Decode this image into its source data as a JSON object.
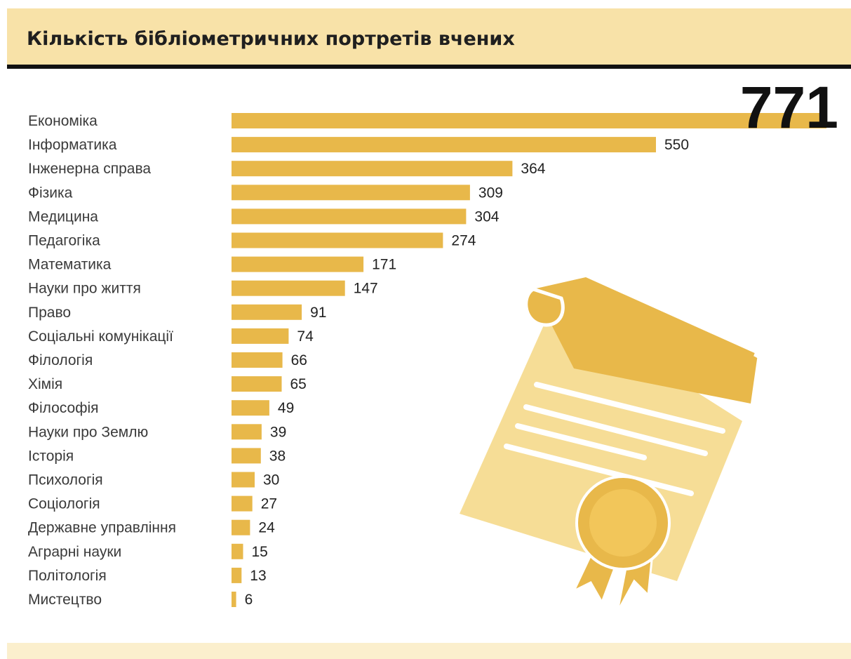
{
  "title": "Кількість бібліометричних портретів вчених",
  "colors": {
    "bar": "#e8b84a",
    "header_band": "#f8e2a8",
    "illustration_light": "#f6dd96",
    "illustration_dark": "#e8b84a"
  },
  "illustration": {
    "icon": "certificate-scroll-icon"
  },
  "chart_data": {
    "type": "bar",
    "orientation": "horizontal",
    "categories": [
      "Економіка",
      "Інформатика",
      "Інженерна справа",
      "Фізика",
      "Медицина",
      "Педагогіка",
      "Математика",
      "Науки про життя",
      "Право",
      "Соціальні комунікації",
      "Філологія",
      "Хімія",
      "Філософія",
      "Науки про Землю",
      "Історія",
      "Психологія",
      "Соціологія",
      "Державне управління",
      "Аграрні науки",
      "Політологія",
      "Мистецтво"
    ],
    "values": [
      771,
      550,
      364,
      309,
      304,
      274,
      171,
      147,
      91,
      74,
      66,
      65,
      49,
      39,
      38,
      30,
      27,
      24,
      15,
      13,
      6
    ],
    "value_labels": [
      "771",
      "550",
      "364",
      "309",
      "304",
      "274",
      "171",
      "147",
      "91",
      "74",
      "66",
      "65",
      "49",
      "39",
      "38",
      "30",
      "27",
      "24",
      "15",
      "13",
      "6"
    ],
    "title": "Кількість бібліометричних портретів вчених",
    "xlabel": "",
    "ylabel": "",
    "xlim": [
      0,
      771
    ],
    "grid": false,
    "legend": "none"
  }
}
